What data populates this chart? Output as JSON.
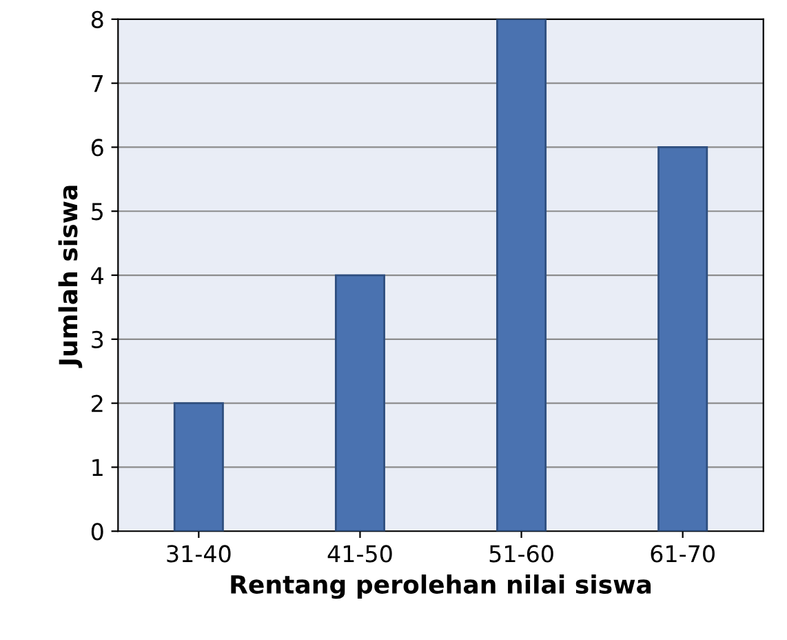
{
  "chart_data": {
    "type": "bar",
    "xlabel": "Rentang perolehan nilai siswa",
    "ylabel": "Jumlah siswa",
    "categories": [
      "31-40",
      "41-50",
      "51-60",
      "61-70"
    ],
    "values": [
      2,
      4,
      8,
      6
    ],
    "color": "#4a72b0",
    "ylim": [
      0,
      8
    ],
    "yticks": [
      0,
      1,
      2,
      3,
      4,
      5,
      6,
      7,
      8
    ],
    "grid": "y"
  }
}
